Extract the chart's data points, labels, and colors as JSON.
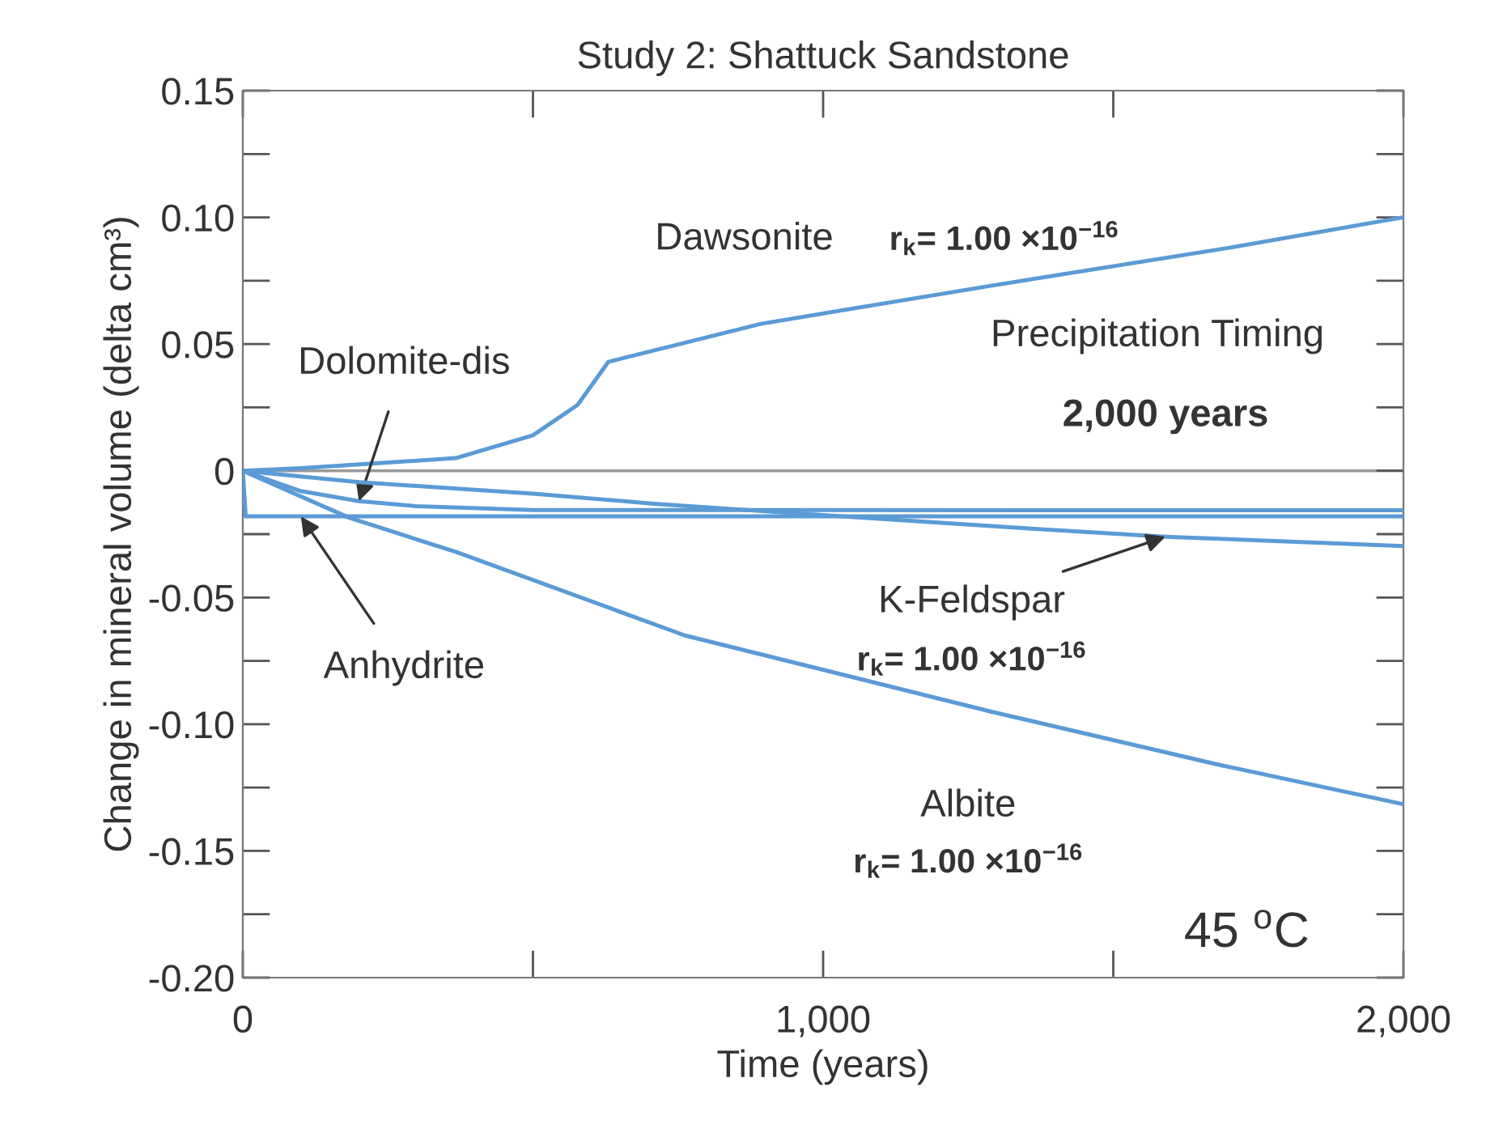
{
  "chart_data": {
    "type": "line",
    "title": "Study 2: Shattuck Sandstone",
    "xlabel": "Time (years)",
    "ylabel": "Change in mineral volume (delta cm³)",
    "series": [
      {
        "name": "Dawsonite",
        "color": "#5b9bd5",
        "x": [
          0,
          100,
          234,
          367,
          500,
          577,
          630,
          893,
          1289,
          1700,
          2000
        ],
        "values": [
          0,
          0.001,
          0.003,
          0.005,
          0.014,
          0.026,
          0.043,
          0.058,
          0.073,
          0.088,
          0.1
        ]
      },
      {
        "name": "Dolomite-dis",
        "color": "#5b9bd5",
        "x": [
          0,
          50,
          100,
          200,
          300,
          500,
          2000
        ],
        "values": [
          0,
          -0.004,
          -0.008,
          -0.012,
          -0.014,
          -0.0155,
          -0.0156
        ]
      },
      {
        "name": "Anhydrite",
        "color": "#5b9bd5",
        "x": [
          0,
          5,
          100,
          2000
        ],
        "values": [
          0,
          -0.018,
          -0.018,
          -0.018
        ]
      },
      {
        "name": "K-Feldspar",
        "color": "#5b9bd5",
        "x": [
          0,
          200,
          500,
          708,
          1000,
          1300,
          1590,
          2000
        ],
        "values": [
          0,
          -0.0045,
          -0.009,
          -0.013,
          -0.0175,
          -0.022,
          -0.026,
          -0.0297
        ]
      },
      {
        "name": "Albite",
        "color": "#5b9bd5",
        "x": [
          0,
          183,
          367,
          762,
          1289,
          1682,
          2000
        ],
        "values": [
          0,
          -0.0185,
          -0.032,
          -0.065,
          -0.095,
          -0.116,
          -0.1316
        ]
      }
    ],
    "annotations": [
      "r$_{k}$= 1.00 ×10$^{−16}$",
      "r$_{k}$= 1.00 ×10$^{−16}$",
      "r$_{k}$= 1.00 ×10$^{−16}$",
      "Precipitation Timing",
      "2,000 years",
      "45 $^{o}$C"
    ],
    "ref_lines": [
      {
        "axis": "y",
        "value": 0,
        "color": "#999999"
      }
    ],
    "xlim": [
      0,
      2000
    ],
    "xticks": [
      {
        "value": 0,
        "label": "0"
      },
      {
        "value": 1000,
        "label": "1,000"
      },
      {
        "value": 2000,
        "label": "2,000"
      }
    ],
    "ylim": [
      -0.2,
      0.15
    ],
    "yticks": [
      {
        "value": -0.2,
        "label": "-0.20"
      },
      {
        "value": -0.15,
        "label": "-0.15"
      },
      {
        "value": -0.1,
        "label": "-0.10"
      },
      {
        "value": -0.05,
        "label": "-0.05"
      },
      {
        "value": 0,
        "label": "0"
      },
      {
        "value": 0.05,
        "label": "0.05"
      },
      {
        "value": 0.1,
        "label": "0.10"
      },
      {
        "value": 0.15,
        "label": "0.15"
      }
    ],
    "grid": false,
    "legend": false,
    "marker": "none",
    "line_style": "solid"
  }
}
